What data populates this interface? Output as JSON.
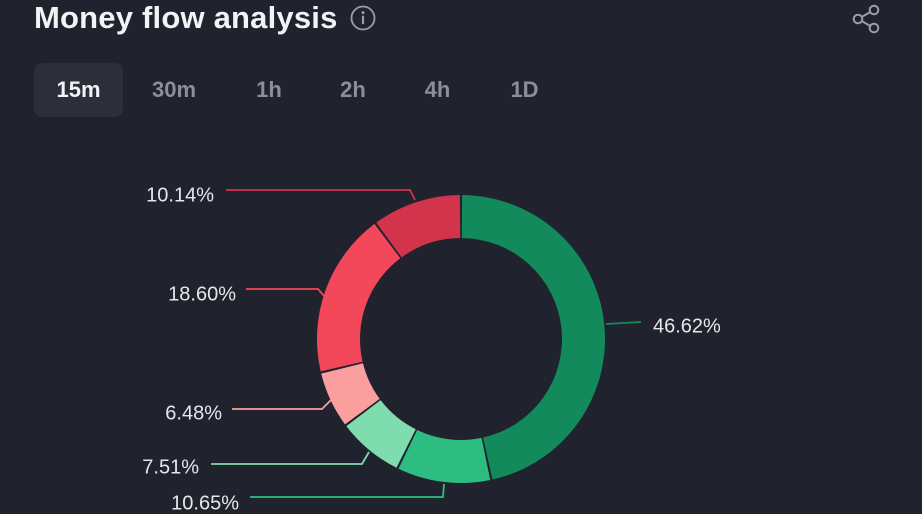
{
  "header": {
    "title": "Money flow analysis",
    "info_icon": "info-circle-icon",
    "share_icon": "share-icon"
  },
  "tabs": [
    {
      "label": "15m",
      "active": true
    },
    {
      "label": "30m",
      "active": false
    },
    {
      "label": "1h",
      "active": false
    },
    {
      "label": "2h",
      "active": false
    },
    {
      "label": "4h",
      "active": false
    },
    {
      "label": "1D",
      "active": false
    }
  ],
  "chart_data": {
    "type": "pie",
    "donut": true,
    "title": "",
    "legend": "none",
    "slices": [
      {
        "value": 46.62,
        "label": "46.62%",
        "color": "#138a5b"
      },
      {
        "value": 10.65,
        "label": "10.65%",
        "color": "#2dbd81"
      },
      {
        "value": 7.51,
        "label": "7.51%",
        "color": "#7fdcae"
      },
      {
        "value": 6.48,
        "label": "6.48%",
        "color": "#fb9e9e"
      },
      {
        "value": 18.6,
        "label": "18.60%",
        "color": "#f2485a"
      },
      {
        "value": 10.14,
        "label": "10.14%",
        "color": "#d3334b"
      }
    ]
  }
}
